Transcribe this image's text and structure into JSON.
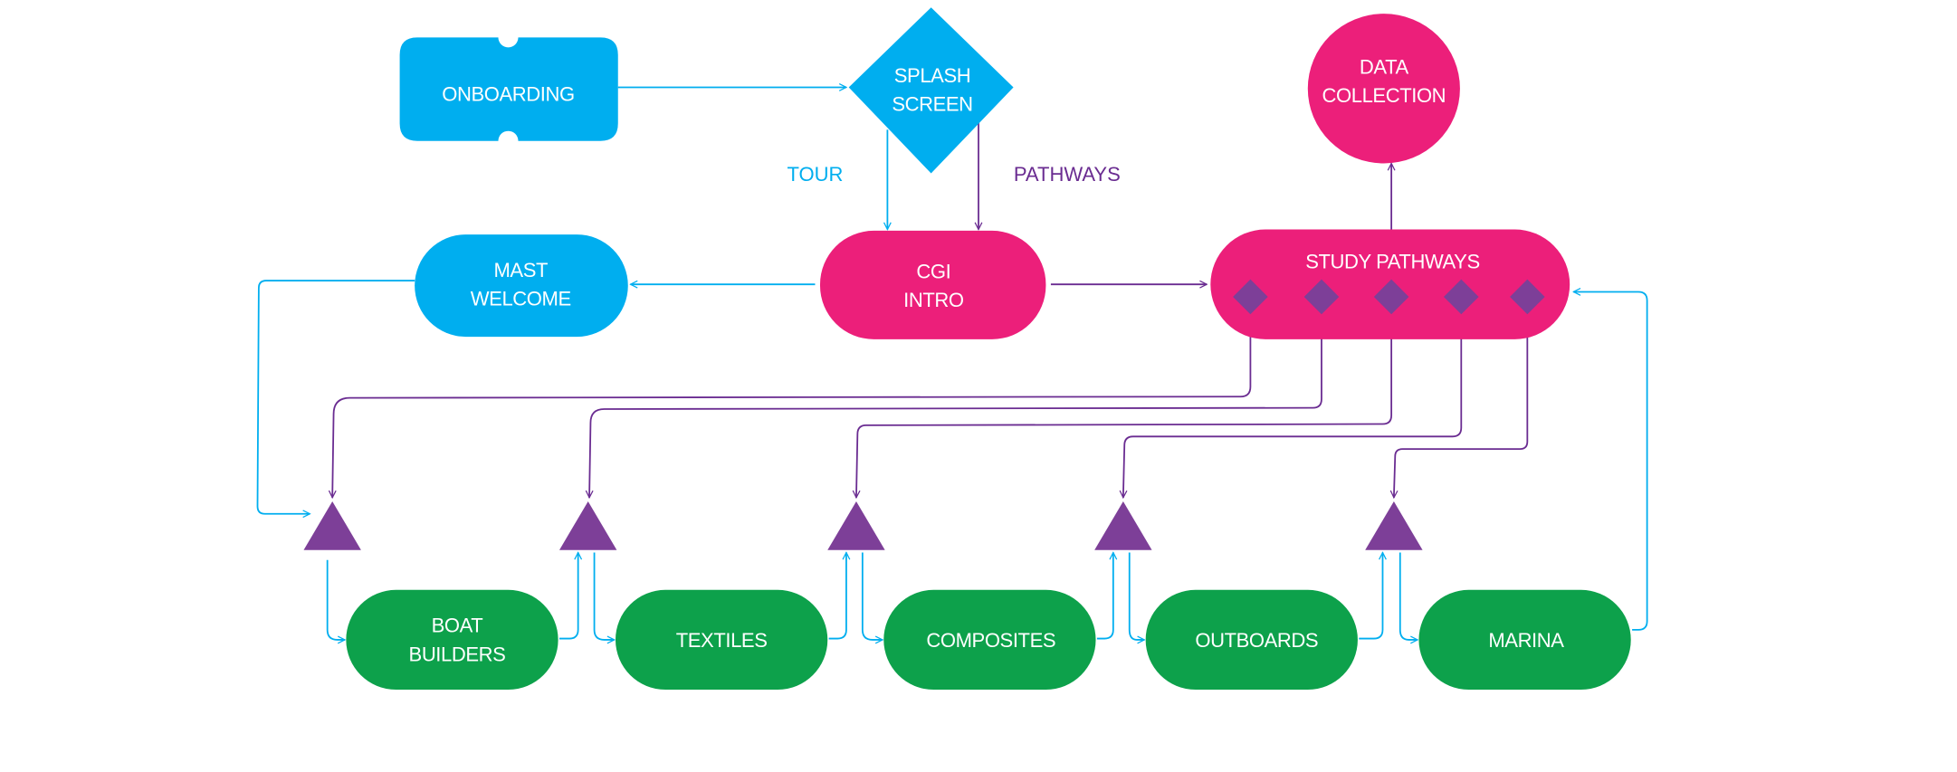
{
  "colors": {
    "cyan": "#00AEEF",
    "magenta": "#EC1F7A",
    "green": "#0DA14B",
    "purple_shape": "#7D3F98",
    "purple_line": "#6A2C91"
  },
  "nodes": {
    "onboarding": {
      "lines": [
        "ONBOARDING"
      ],
      "shape": "ticket"
    },
    "splash": {
      "lines": [
        "SPLASH",
        "SCREEN"
      ],
      "shape": "diamond"
    },
    "data_collection": {
      "lines": [
        "DATA",
        "COLLECTION"
      ],
      "shape": "circle"
    },
    "cgi_intro": {
      "lines": [
        "CGI",
        "INTRO"
      ],
      "shape": "pill"
    },
    "mast_welcome": {
      "lines": [
        "MAST",
        "WELCOME"
      ],
      "shape": "pill"
    },
    "study_pathways": {
      "lines": [
        "STUDY PATHWAYS"
      ],
      "shape": "pill"
    },
    "boat_builders": {
      "lines": [
        "BOAT",
        "BUILDERS"
      ],
      "shape": "pill"
    },
    "textiles": {
      "lines": [
        "TEXTILES"
      ],
      "shape": "pill"
    },
    "composites": {
      "lines": [
        "COMPOSITES"
      ],
      "shape": "pill"
    },
    "outboards": {
      "lines": [
        "OUTBOARDS"
      ],
      "shape": "pill"
    },
    "marina": {
      "lines": [
        "MARINA"
      ],
      "shape": "pill"
    }
  },
  "edge_labels": {
    "tour": "TOUR",
    "pathways": "PATHWAYS"
  }
}
